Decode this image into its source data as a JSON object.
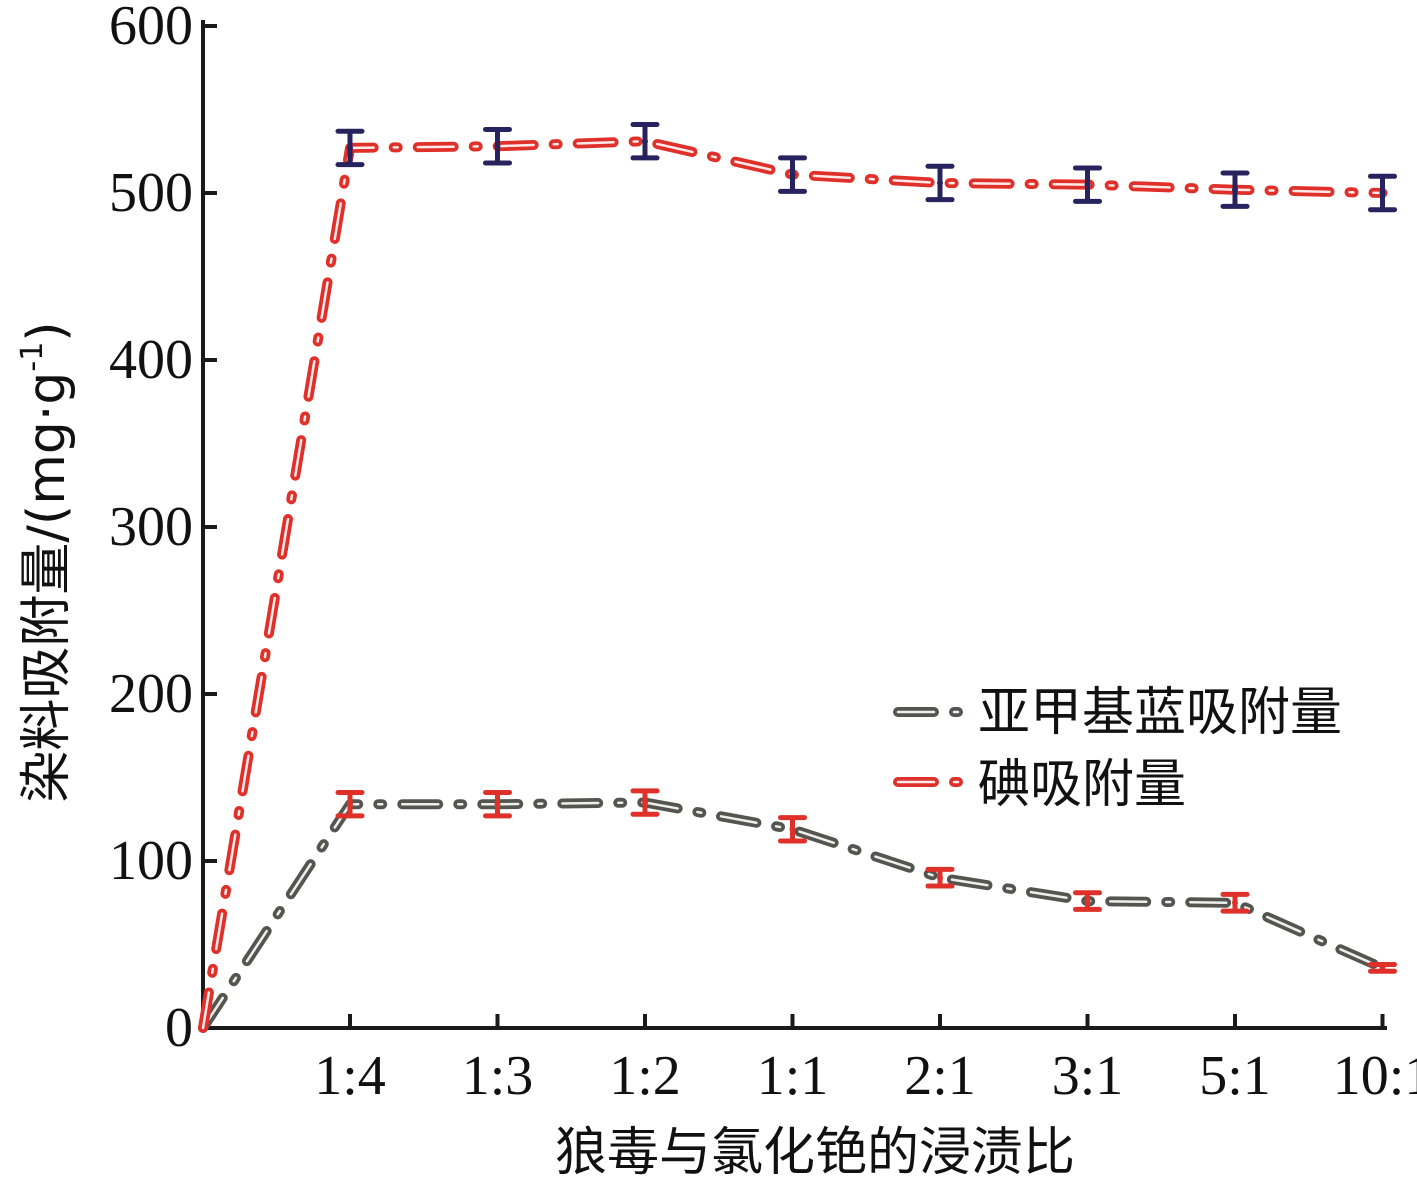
{
  "chart_data": {
    "type": "line",
    "xlabel": "狼毒与氯化铯的浸渍比",
    "ylabel": "染料吸附量/(mg·g",
    "ylabel_sup": "-1",
    "ylabel_close": ")",
    "ylim": [
      0,
      600
    ],
    "yticks": [
      "0",
      "100",
      "200",
      "300",
      "400",
      "500",
      "600"
    ],
    "categories": [
      "1:4",
      "1:3",
      "1:2",
      "1:1",
      "2:1",
      "3:1",
      "5:1",
      "10:1"
    ],
    "legend_position": "center-right",
    "grid": false,
    "series": [
      {
        "name": "亚甲基蓝吸附量",
        "line_color": "#555550",
        "errorbar_color": "#e0302a",
        "origin_value": 0,
        "values": [
          134,
          134,
          135,
          119,
          90,
          76,
          75,
          36
        ],
        "errors": [
          7,
          7,
          7,
          7,
          5,
          5,
          5,
          2
        ]
      },
      {
        "name": "碘吸附量",
        "line_color": "#e0302a",
        "errorbar_color": "#27235e",
        "origin_value": 0,
        "values": [
          527,
          528,
          531,
          511,
          506,
          505,
          502,
          500
        ],
        "errors": [
          10,
          10,
          10,
          10,
          10,
          10,
          10,
          10
        ]
      }
    ]
  }
}
